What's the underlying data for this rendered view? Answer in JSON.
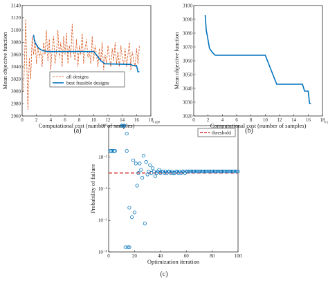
{
  "colors": {
    "orange": "#D95319",
    "blue": "#0072BD",
    "red": "#D62728",
    "axis": "#262626"
  },
  "panel_labels": [
    "(a)",
    "(b)",
    "(c)"
  ],
  "chart_data": [
    {
      "id": "a",
      "type": "line",
      "xlabel": "Computational cost (number of samples)",
      "ylabel": "Mean objective function",
      "x_multiplier": "×10⁵",
      "xlim": [
        0,
        18
      ],
      "ylim": [
        2960,
        3140
      ],
      "xticks": [
        0,
        2,
        4,
        6,
        8,
        10,
        12,
        14,
        16,
        18
      ],
      "yticks": [
        2960,
        2980,
        3000,
        3020,
        3040,
        3060,
        3080,
        3100,
        3120,
        3140
      ],
      "legend": {
        "position": "lower-left",
        "entries": [
          "all designs",
          "best feasible designs"
        ]
      },
      "series": [
        {
          "name": "all designs",
          "style": "dashed",
          "color": "#D95319",
          "x": [
            0.2,
            0.5,
            0.8,
            1.0,
            1.2,
            1.4,
            1.6,
            1.8,
            2.0,
            2.2,
            2.4,
            2.6,
            2.8,
            3.0,
            3.2,
            3.4,
            3.6,
            3.8,
            4.0,
            4.2,
            4.4,
            4.6,
            4.8,
            5.0,
            5.2,
            5.4,
            5.6,
            5.8,
            6.0,
            6.2,
            6.4,
            6.6,
            6.8,
            7.0,
            7.2,
            7.4,
            7.6,
            7.8,
            8.0,
            8.2,
            8.4,
            8.6,
            8.8,
            9.0,
            9.2,
            9.4,
            9.6,
            9.8,
            10.0,
            10.2,
            10.4,
            10.6,
            10.8,
            11.0,
            11.2,
            11.4,
            11.6,
            11.8,
            12.0,
            12.2,
            12.4,
            12.6,
            12.8,
            13.0,
            13.2,
            13.4,
            13.6,
            13.8,
            14.0,
            14.2,
            14.4,
            14.6,
            14.8,
            15.0,
            15.2,
            15.4,
            15.6,
            15.8,
            16.0,
            16.2,
            16.4
          ],
          "y": [
            3000,
            3118,
            2970,
            3055,
            3020,
            3090,
            3060,
            3085,
            3045,
            3075,
            3055,
            3065,
            3040,
            3080,
            3060,
            3100,
            3050,
            3085,
            3035,
            3070,
            3090,
            3045,
            3065,
            3100,
            3055,
            3080,
            3040,
            3090,
            3060,
            3095,
            3045,
            3075,
            3055,
            3110,
            3065,
            3050,
            3085,
            3040,
            3075,
            3060,
            3095,
            3045,
            3070,
            3085,
            3055,
            3065,
            3045,
            3090,
            3050,
            3075,
            3060,
            3040,
            3070,
            3050,
            3080,
            3035,
            3060,
            3045,
            3075,
            3055,
            3040,
            3070,
            3050,
            3080,
            3045,
            3065,
            3040,
            3075,
            3055,
            3045,
            3070,
            3040,
            3060,
            3080,
            3035,
            3065,
            3050,
            3040,
            3070,
            3045,
            3075
          ]
        },
        {
          "name": "best feasible designs",
          "style": "solid",
          "color": "#0072BD",
          "x": [
            1.6,
            1.7,
            1.8,
            2.2,
            2.6,
            3.0,
            3.6,
            10.0,
            10.5,
            11.0,
            11.6,
            15.2,
            15.5,
            16.0,
            16.2,
            16.4
          ],
          "y": [
            3092,
            3084,
            3080,
            3072,
            3068,
            3066,
            3065,
            3065,
            3058,
            3050,
            3045,
            3044,
            3042,
            3042,
            3032,
            3032
          ]
        }
      ]
    },
    {
      "id": "b",
      "type": "line",
      "xlabel": "Computational cost (number of samples)",
      "ylabel": "Mean objective function",
      "x_multiplier": "×10⁵",
      "xlim": [
        0,
        18
      ],
      "ylim": [
        3020,
        3100
      ],
      "xticks": [
        0,
        2,
        4,
        6,
        8,
        10,
        12,
        14,
        16,
        18
      ],
      "yticks": [
        3020,
        3030,
        3040,
        3050,
        3060,
        3070,
        3080,
        3090,
        3100
      ],
      "series": [
        {
          "style": "solid",
          "color": "#0072BD",
          "x": [
            1.6,
            1.75,
            1.9,
            2.2,
            2.6,
            3.0,
            10.0,
            11.6,
            15.2,
            15.5,
            16.0,
            16.2,
            16.4
          ],
          "y": [
            3093,
            3082,
            3078,
            3069,
            3066,
            3064,
            3064,
            3043,
            3043,
            3038,
            3038,
            3029,
            3029
          ]
        }
      ]
    },
    {
      "id": "c",
      "type": "scatter",
      "xlabel": "Optimization iteration",
      "ylabel": "Probability of failure",
      "xlim": [
        0,
        100
      ],
      "ylim_log10": [
        -8,
        0
      ],
      "yscale": "log",
      "xticks": [
        0,
        20,
        40,
        60,
        80,
        100
      ],
      "yticks": [
        "10⁰",
        "10⁻²",
        "10⁻⁴",
        "10⁻⁶",
        "10⁻⁸"
      ],
      "threshold_log10": -3,
      "legend": {
        "position": "top-right",
        "entries": [
          "threshold"
        ]
      },
      "series": [
        {
          "marker": "open-circle",
          "color": "#0072BD",
          "x": [
            1,
            2,
            3,
            4,
            5,
            10,
            11,
            12,
            13,
            14,
            15,
            16,
            18,
            19,
            20,
            21,
            22,
            23,
            24,
            25,
            26,
            27,
            28,
            29,
            30,
            31,
            32,
            33,
            34,
            35,
            36,
            37,
            38,
            39,
            40,
            41,
            42,
            43,
            44,
            45,
            46,
            47,
            48,
            49,
            50,
            51,
            52,
            53,
            54,
            55,
            56,
            57,
            58,
            59,
            60,
            61,
            62,
            63,
            64,
            65,
            66,
            67,
            68,
            69,
            70,
            71,
            72,
            73,
            74,
            75,
            76,
            77,
            78,
            79,
            80,
            81,
            82,
            83,
            84,
            85,
            86,
            87,
            88,
            89,
            90,
            91,
            92,
            93,
            94,
            95,
            96,
            97,
            98,
            99,
            100,
            12,
            14,
            16
          ],
          "y_log10": [
            -1.6,
            -1.6,
            -1.6,
            -1.6,
            -1.6,
            0,
            0,
            0,
            -7.7,
            -0.5,
            -7.7,
            -7.7,
            -5.8,
            -2.2,
            -5.5,
            -2.4,
            -3.8,
            -3.0,
            -2.4,
            -2.8,
            -3.3,
            -1.9,
            -6.2,
            -2.3,
            -3.1,
            -2.9,
            -2.5,
            -3.0,
            -2.7,
            -2.9,
            -3.2,
            -3.0,
            -2.9,
            -2.8,
            -3.0,
            -2.9,
            -2.9,
            -3.0,
            -2.9,
            -3.0,
            -2.9,
            -2.9,
            -3.0,
            -2.9,
            -3.0,
            -3.0,
            -2.9,
            -2.9,
            -3.0,
            -2.9,
            -3.0,
            -2.9,
            -2.9,
            -3.0,
            -2.9,
            -2.9,
            -2.9,
            -2.9,
            -2.9,
            -2.9,
            -2.9,
            -2.9,
            -2.9,
            -2.9,
            -2.9,
            -2.9,
            -2.9,
            -2.9,
            -2.9,
            -2.9,
            -2.9,
            -2.9,
            -2.9,
            -2.9,
            -2.9,
            -2.9,
            -2.9,
            -2.9,
            -2.9,
            -2.9,
            -2.9,
            -2.9,
            -2.9,
            -2.9,
            -2.9,
            -2.9,
            -2.9,
            -2.9,
            -2.9,
            -2.9,
            -2.9,
            -2.9,
            -2.9,
            -2.9,
            -2.9,
            0,
            -1.6,
            -5.2
          ]
        }
      ]
    }
  ]
}
